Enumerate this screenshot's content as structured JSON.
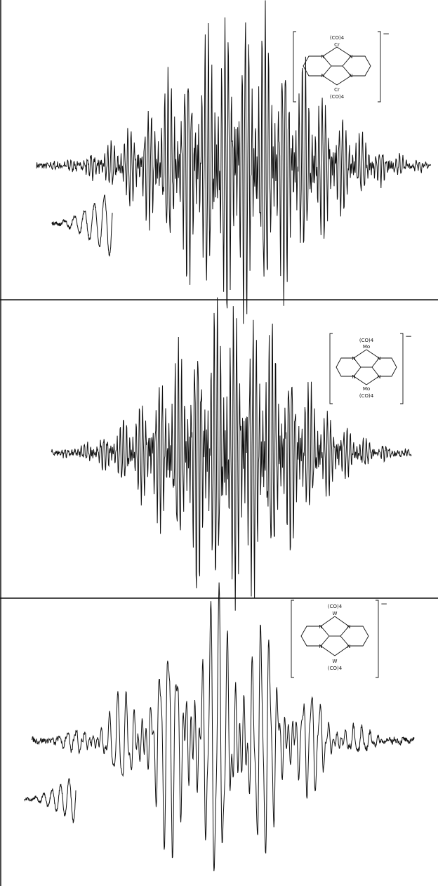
{
  "figure": {
    "panels": [
      {
        "metal": "Cr",
        "charge": "−",
        "ligand_label_top": "(CO)4",
        "ligand_label_bottom": "(CO)4",
        "n_label": "N"
      },
      {
        "metal": "Mo",
        "charge": "−",
        "ligand_label_top": "(CO)4",
        "ligand_label_bottom": "(CO)4",
        "n_label": "N"
      },
      {
        "metal": "W",
        "charge": "−",
        "ligand_label_top": "(CO)4",
        "ligand_label_bottom": "(CO)4",
        "n_label": "N"
      }
    ]
  },
  "chart_data": [
    {
      "type": "line",
      "title": "",
      "xlabel": "",
      "ylabel": "",
      "grid": false,
      "legend": "none",
      "series": [
        {
          "description": "main spectrum",
          "x_range": [
            0,
            1
          ],
          "envelope_peak_x": 0.52,
          "line_spacing": 0.0085,
          "max_amplitude": 1.0
        },
        {
          "description": "inset wing trace",
          "x_range": [
            0,
            0.18
          ],
          "max_amplitude": 0.62
        }
      ]
    },
    {
      "type": "line",
      "title": "",
      "xlabel": "",
      "ylabel": "",
      "grid": false,
      "legend": "none",
      "series": [
        {
          "description": "main spectrum",
          "x_range": [
            0,
            1
          ],
          "envelope_peak_x": 0.5,
          "line_spacing": 0.009,
          "max_amplitude": 1.0
        }
      ]
    },
    {
      "type": "line",
      "title": "",
      "xlabel": "",
      "ylabel": "",
      "grid": false,
      "legend": "none",
      "series": [
        {
          "description": "main spectrum",
          "x_range": [
            0,
            1
          ],
          "envelope_peak_x": 0.49,
          "line_spacing": 0.022,
          "max_amplitude": 1.0
        },
        {
          "description": "inset wing trace",
          "x_range": [
            0,
            0.14
          ],
          "max_amplitude": 0.5
        }
      ]
    }
  ]
}
